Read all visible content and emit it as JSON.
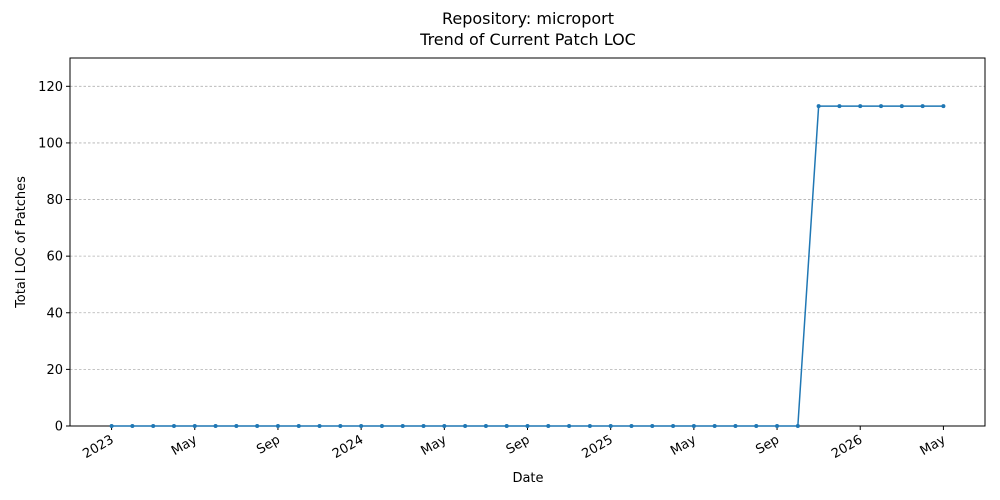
{
  "chart_data": {
    "type": "line",
    "title": "Repository: microport",
    "subtitle": "Trend of Current Patch LOC",
    "x_label": "Date",
    "y_label": "Total LOC of Patches",
    "color": "#1f77b4",
    "grid": true,
    "x": [
      "2023-01",
      "2023-02",
      "2023-03",
      "2023-04",
      "2023-05",
      "2023-06",
      "2023-07",
      "2023-08",
      "2023-09",
      "2023-10",
      "2023-11",
      "2023-12",
      "2024-01",
      "2024-02",
      "2024-03",
      "2024-04",
      "2024-05",
      "2024-06",
      "2024-07",
      "2024-08",
      "2024-09",
      "2024-10",
      "2024-11",
      "2024-12",
      "2025-01",
      "2025-02",
      "2025-03",
      "2025-04",
      "2025-05",
      "2025-06",
      "2025-07",
      "2025-08",
      "2025-09",
      "2025-10",
      "2025-11",
      "2025-12",
      "2026-01",
      "2026-02",
      "2026-03",
      "2026-04",
      "2026-05"
    ],
    "values": [
      0,
      0,
      0,
      0,
      0,
      0,
      0,
      0,
      0,
      0,
      0,
      0,
      0,
      0,
      0,
      0,
      0,
      0,
      0,
      0,
      0,
      0,
      0,
      0,
      0,
      0,
      0,
      0,
      0,
      0,
      0,
      0,
      0,
      0,
      113,
      113,
      113,
      113,
      113,
      113,
      113
    ],
    "xlim": [
      "2022-11",
      "2026-07"
    ],
    "xticks": [
      {
        "value": "2023-01",
        "label": "2023"
      },
      {
        "value": "2023-05",
        "label": "May"
      },
      {
        "value": "2023-09",
        "label": "Sep"
      },
      {
        "value": "2024-01",
        "label": "2024"
      },
      {
        "value": "2024-05",
        "label": "May"
      },
      {
        "value": "2024-09",
        "label": "Sep"
      },
      {
        "value": "2025-01",
        "label": "2025"
      },
      {
        "value": "2025-05",
        "label": "May"
      },
      {
        "value": "2025-09",
        "label": "Sep"
      },
      {
        "value": "2026-01",
        "label": "2026"
      },
      {
        "value": "2026-05",
        "label": "May"
      }
    ],
    "ylim": [
      0,
      130
    ],
    "yticks": [
      0,
      20,
      40,
      60,
      80,
      100,
      120
    ]
  }
}
